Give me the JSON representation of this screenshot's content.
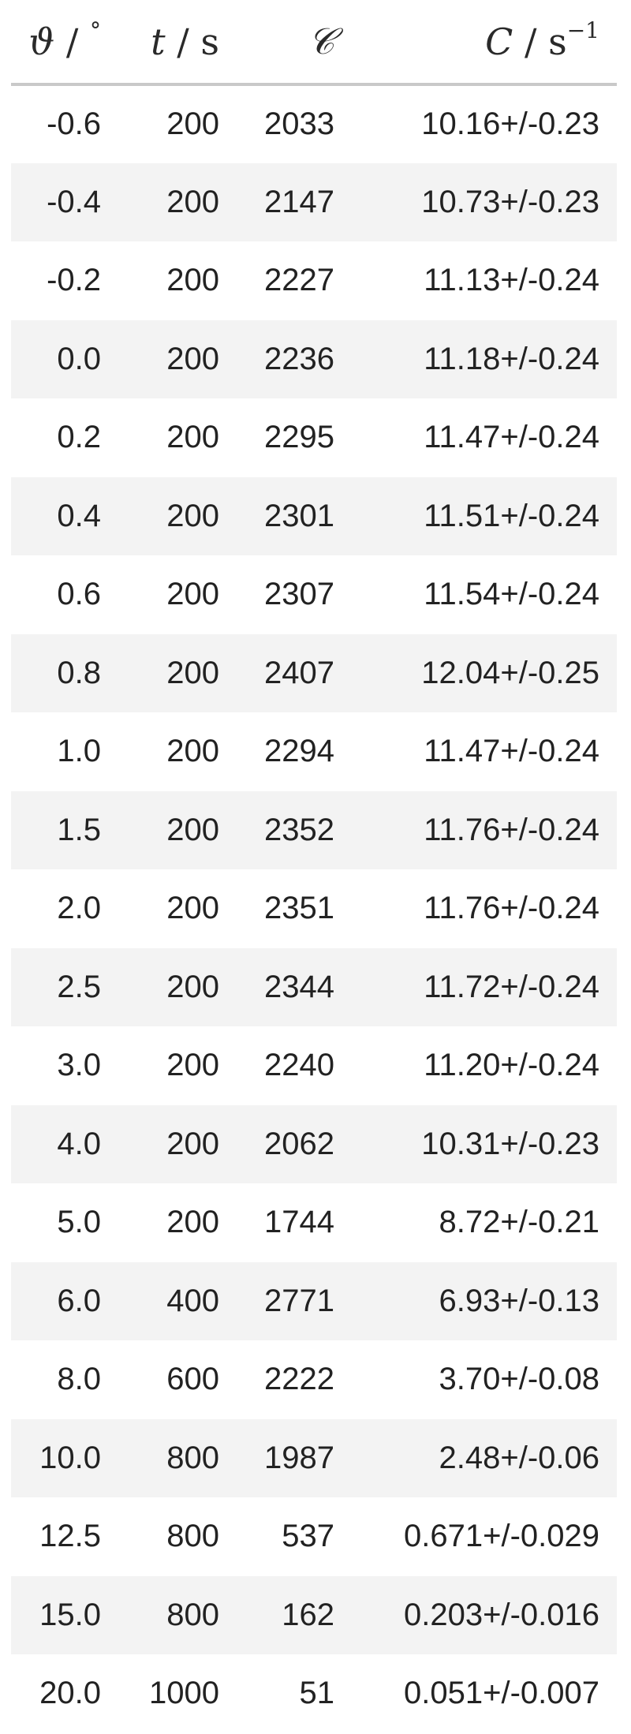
{
  "table": {
    "headers": {
      "angle_symbol": "ϑ",
      "angle_unit": "°",
      "time_symbol": "t",
      "time_unit": "s",
      "counts_symbol": "𝒞",
      "rate_symbol": "C",
      "rate_unit": "s",
      "rate_exp": "−1",
      "sep": " / "
    },
    "rows": [
      {
        "theta": "-0.6",
        "t": "200",
        "counts": "2033",
        "rate": "10.16+/-0.23"
      },
      {
        "theta": "-0.4",
        "t": "200",
        "counts": "2147",
        "rate": "10.73+/-0.23"
      },
      {
        "theta": "-0.2",
        "t": "200",
        "counts": "2227",
        "rate": "11.13+/-0.24"
      },
      {
        "theta": "0.0",
        "t": "200",
        "counts": "2236",
        "rate": "11.18+/-0.24"
      },
      {
        "theta": "0.2",
        "t": "200",
        "counts": "2295",
        "rate": "11.47+/-0.24"
      },
      {
        "theta": "0.4",
        "t": "200",
        "counts": "2301",
        "rate": "11.51+/-0.24"
      },
      {
        "theta": "0.6",
        "t": "200",
        "counts": "2307",
        "rate": "11.54+/-0.24"
      },
      {
        "theta": "0.8",
        "t": "200",
        "counts": "2407",
        "rate": "12.04+/-0.25"
      },
      {
        "theta": "1.0",
        "t": "200",
        "counts": "2294",
        "rate": "11.47+/-0.24"
      },
      {
        "theta": "1.5",
        "t": "200",
        "counts": "2352",
        "rate": "11.76+/-0.24"
      },
      {
        "theta": "2.0",
        "t": "200",
        "counts": "2351",
        "rate": "11.76+/-0.24"
      },
      {
        "theta": "2.5",
        "t": "200",
        "counts": "2344",
        "rate": "11.72+/-0.24"
      },
      {
        "theta": "3.0",
        "t": "200",
        "counts": "2240",
        "rate": "11.20+/-0.24"
      },
      {
        "theta": "4.0",
        "t": "200",
        "counts": "2062",
        "rate": "10.31+/-0.23"
      },
      {
        "theta": "5.0",
        "t": "200",
        "counts": "1744",
        "rate": "8.72+/-0.21"
      },
      {
        "theta": "6.0",
        "t": "400",
        "counts": "2771",
        "rate": "6.93+/-0.13"
      },
      {
        "theta": "8.0",
        "t": "600",
        "counts": "2222",
        "rate": "3.70+/-0.08"
      },
      {
        "theta": "10.0",
        "t": "800",
        "counts": "1987",
        "rate": "2.48+/-0.06"
      },
      {
        "theta": "12.5",
        "t": "800",
        "counts": "537",
        "rate": "0.671+/-0.029"
      },
      {
        "theta": "15.0",
        "t": "800",
        "counts": "162",
        "rate": "0.203+/-0.016"
      },
      {
        "theta": "20.0",
        "t": "1000",
        "counts": "51",
        "rate": "0.051+/-0.007"
      }
    ]
  }
}
